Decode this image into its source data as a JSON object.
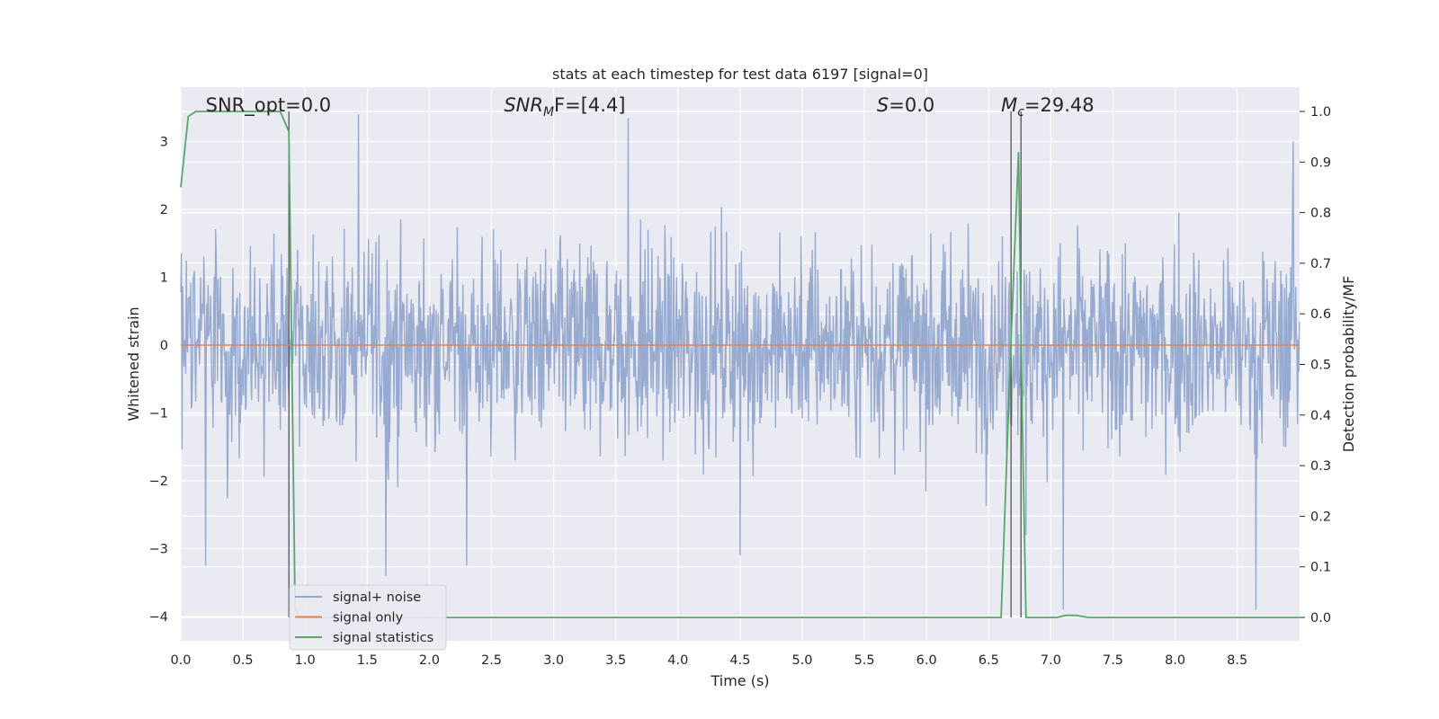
{
  "chart_data": {
    "type": "line",
    "title": "stats at each timestep for test data 6197 [signal=0]",
    "xlabel": "Time (s)",
    "ylabel": "Whitened strain",
    "ylabel_right": "Detection probability/MF",
    "xlim": [
      0.0,
      9.0
    ],
    "ylim": [
      -4.35,
      3.85
    ],
    "ylim_right": [
      -0.048,
      1.048
    ],
    "x_ticks": [
      "0.0",
      "0.5",
      "1.0",
      "1.5",
      "2.0",
      "2.5",
      "3.0",
      "3.5",
      "4.0",
      "4.5",
      "5.0",
      "5.5",
      "6.0",
      "6.5",
      "7.0",
      "7.5",
      "8.0",
      "8.5"
    ],
    "y_ticks": [
      "−4",
      "−3",
      "−2",
      "−1",
      "0",
      "1",
      "2",
      "3"
    ],
    "y_ticks_right": [
      "0.0",
      "0.1",
      "0.2",
      "0.3",
      "0.4",
      "0.5",
      "0.6",
      "0.7",
      "0.8",
      "0.9",
      "1.0"
    ],
    "grid": true,
    "legend_position": "bottom-left",
    "annotations": [
      {
        "x": 0.2,
        "text": "SNR_opt=0.0",
        "italic_prefix": false
      },
      {
        "x": 2.6,
        "text": "SNR",
        "sub": "M",
        "tail": "F=[4.4]",
        "italic_prefix": true
      },
      {
        "x": 5.6,
        "text": "S",
        "tail": "=0.0",
        "italic_prefix": true
      },
      {
        "x": 6.6,
        "text": "M",
        "sub": "c",
        "tail": "=29.48",
        "italic_prefix": true
      }
    ],
    "vlines": [
      0.87,
      6.68,
      6.76
    ],
    "series": [
      {
        "name": "signal+ noise",
        "color": "#92a6cd",
        "axis": "left",
        "description": "whitened noise, typical amplitude ~1.5, peaks ~3.5",
        "peaks": [
          [
            0.2,
            -3.25
          ],
          [
            1.43,
            3.4
          ],
          [
            1.65,
            -3.4
          ],
          [
            2.3,
            -3.25
          ],
          [
            3.6,
            3.35
          ],
          [
            4.5,
            -3.1
          ],
          [
            6.8,
            -2.8
          ],
          [
            7.1,
            -3.9
          ],
          [
            8.65,
            -3.9
          ],
          [
            8.95,
            3.0
          ]
        ]
      },
      {
        "name": "signal only",
        "color": "#dd8452",
        "axis": "left",
        "x": [
          0.0,
          9.0
        ],
        "y": [
          0.0,
          0.0
        ]
      },
      {
        "name": "signal statistics",
        "color": "#55a868",
        "axis": "right",
        "x": [
          0.0,
          0.06,
          0.12,
          0.5,
          0.8,
          0.87,
          0.92,
          0.95,
          1.0,
          6.6,
          6.68,
          6.74,
          6.77,
          6.8,
          7.05,
          7.12,
          7.2,
          7.3,
          9.0
        ],
        "y": [
          0.85,
          0.99,
          1.0,
          1.0,
          1.0,
          0.96,
          0.02,
          0.0,
          0.0,
          0.0,
          0.55,
          0.92,
          0.4,
          0.0,
          0.0,
          0.004,
          0.004,
          0.0,
          0.0
        ]
      }
    ]
  }
}
